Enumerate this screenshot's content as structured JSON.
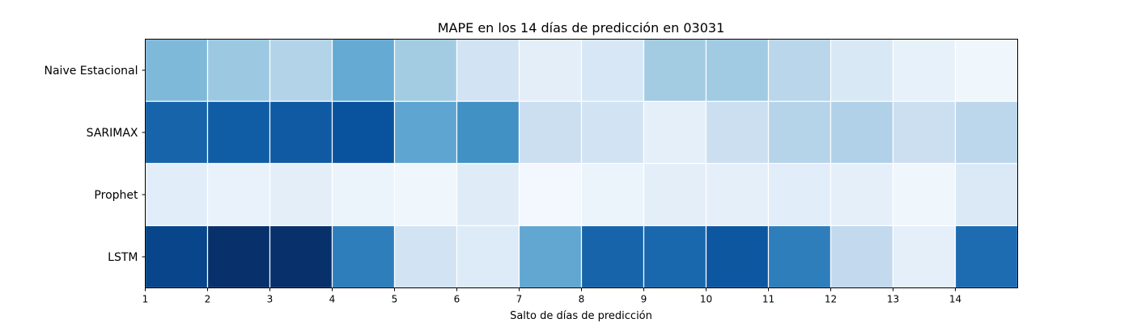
{
  "chart_data": {
    "type": "heatmap",
    "title": "MAPE en los 14 días de predicción en 03031",
    "xlabel": "Salto de días de predicción",
    "ylabel": "",
    "colormap": "Blues",
    "grid": false,
    "rows": [
      "Naive Estacional",
      "SARIMAX",
      "Prophet",
      "LSTM"
    ],
    "x_ticks": [
      "1",
      "2",
      "3",
      "4",
      "5",
      "6",
      "7",
      "8",
      "9",
      "10",
      "11",
      "12",
      "13",
      "14"
    ],
    "columns": [
      1,
      2,
      3,
      4,
      5,
      6,
      7,
      8,
      9,
      10,
      11,
      12,
      13,
      14
    ],
    "values": [
      [
        0.45,
        0.38,
        0.31,
        0.52,
        0.36,
        0.19,
        0.1,
        0.16,
        0.36,
        0.37,
        0.29,
        0.15,
        0.08,
        0.04
      ],
      [
        0.8,
        0.83,
        0.84,
        0.87,
        0.54,
        0.63,
        0.22,
        0.19,
        0.09,
        0.22,
        0.3,
        0.32,
        0.22,
        0.28
      ],
      [
        0.11,
        0.07,
        0.1,
        0.06,
        0.04,
        0.12,
        0.02,
        0.06,
        0.1,
        0.09,
        0.11,
        0.09,
        0.04,
        0.14
      ],
      [
        0.92,
        1.0,
        1.0,
        0.7,
        0.19,
        0.13,
        0.53,
        0.8,
        0.79,
        0.85,
        0.7,
        0.26,
        0.09,
        0.77
      ]
    ],
    "value_range": [
      0,
      1
    ]
  }
}
